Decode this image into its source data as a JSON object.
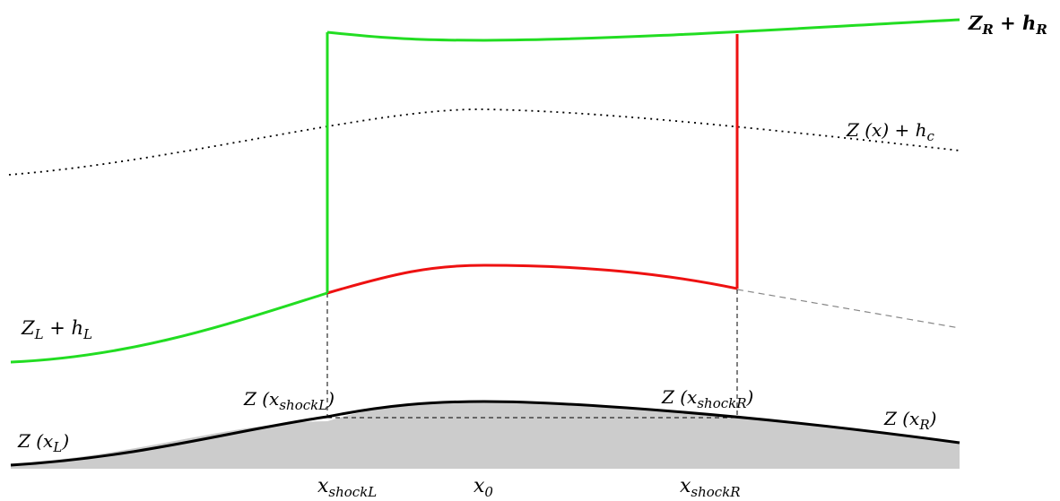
{
  "colors": {
    "subcritical": "#22dd22",
    "supercritical": "#ee1111",
    "bed_fill": "#cccccc",
    "bed_line": "#000000",
    "guide": "#000000",
    "critical": "#000000"
  },
  "labels": {
    "zr_hr": {
      "main": "Z",
      "sub1": "R",
      "op": " + ",
      "main2": "h",
      "sub2": "R"
    },
    "z_hc": {
      "pre": "Z (x) + h",
      "sub": "c"
    },
    "zl_hl": {
      "main": "Z",
      "sub1": "L",
      "op": " + ",
      "main2": "h",
      "sub2": "L"
    },
    "z_shockl": {
      "pre": "Z (x",
      "sub": "shockL",
      "post": ")"
    },
    "z_shockr": {
      "pre": "Z (x",
      "sub": "shockR",
      "post": ")"
    },
    "z_xl": {
      "pre": "Z (x",
      "sub": "L",
      "post": ")"
    },
    "z_xr": {
      "pre": "Z (x",
      "sub": "R",
      "post": ")"
    },
    "x_shockl": {
      "main": "x",
      "sub": "shockL"
    },
    "x_0": {
      "main": "x",
      "sub": "0"
    },
    "x_shockr": {
      "main": "x",
      "sub": "shockR"
    }
  }
}
